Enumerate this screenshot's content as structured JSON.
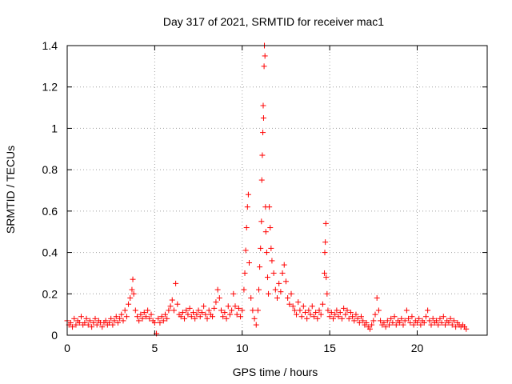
{
  "chart_data": {
    "type": "scatter",
    "title": "Day 317 of 2021, SRMTID for receiver mac1",
    "xlabel": "GPS time / hours",
    "ylabel": "SRMTID / TECUs",
    "xlim": [
      0,
      24
    ],
    "ylim": [
      0,
      1.4
    ],
    "x_ticks": [
      0,
      5,
      10,
      15,
      20
    ],
    "x_tick_labels": [
      "0",
      "5",
      "10",
      "15",
      "20"
    ],
    "y_ticks": [
      0,
      0.2,
      0.4,
      0.6,
      0.8,
      1.0,
      1.2,
      1.4
    ],
    "y_tick_labels": [
      "0",
      "0.2",
      "0.4",
      "0.6",
      "0.8",
      "1",
      "1.2",
      "1.4"
    ],
    "grid": true,
    "marker": "+",
    "series": [
      {
        "name": "mac1",
        "color": "#ff0000",
        "points": [
          [
            0.0,
            0.07
          ],
          [
            0.1,
            0.05
          ],
          [
            0.2,
            0.06
          ],
          [
            0.3,
            0.04
          ],
          [
            0.4,
            0.08
          ],
          [
            0.5,
            0.05
          ],
          [
            0.6,
            0.07
          ],
          [
            0.7,
            0.06
          ],
          [
            0.8,
            0.09
          ],
          [
            0.9,
            0.05
          ],
          [
            1.0,
            0.06
          ],
          [
            1.1,
            0.08
          ],
          [
            1.2,
            0.05
          ],
          [
            1.3,
            0.07
          ],
          [
            1.4,
            0.04
          ],
          [
            1.5,
            0.06
          ],
          [
            1.6,
            0.08
          ],
          [
            1.7,
            0.05
          ],
          [
            1.8,
            0.07
          ],
          [
            1.9,
            0.06
          ],
          [
            2.0,
            0.04
          ],
          [
            2.1,
            0.06
          ],
          [
            2.2,
            0.07
          ],
          [
            2.3,
            0.05
          ],
          [
            2.4,
            0.06
          ],
          [
            2.5,
            0.08
          ],
          [
            2.6,
            0.05
          ],
          [
            2.7,
            0.07
          ],
          [
            2.8,
            0.09
          ],
          [
            2.9,
            0.06
          ],
          [
            3.0,
            0.08
          ],
          [
            3.1,
            0.1
          ],
          [
            3.2,
            0.07
          ],
          [
            3.3,
            0.12
          ],
          [
            3.4,
            0.09
          ],
          [
            3.5,
            0.15
          ],
          [
            3.6,
            0.18
          ],
          [
            3.7,
            0.22
          ],
          [
            3.75,
            0.27
          ],
          [
            3.8,
            0.2
          ],
          [
            3.9,
            0.12
          ],
          [
            4.0,
            0.09
          ],
          [
            4.1,
            0.07
          ],
          [
            4.2,
            0.1
          ],
          [
            4.3,
            0.08
          ],
          [
            4.4,
            0.11
          ],
          [
            4.5,
            0.09
          ],
          [
            4.6,
            0.12
          ],
          [
            4.7,
            0.08
          ],
          [
            4.8,
            0.1
          ],
          [
            4.9,
            0.07
          ],
          [
            5.0,
            0.06
          ],
          [
            5.1,
            0.0
          ],
          [
            5.2,
            0.08
          ],
          [
            5.3,
            0.06
          ],
          [
            5.4,
            0.09
          ],
          [
            5.5,
            0.07
          ],
          [
            5.6,
            0.1
          ],
          [
            5.7,
            0.08
          ],
          [
            5.8,
            0.12
          ],
          [
            5.9,
            0.14
          ],
          [
            6.0,
            0.17
          ],
          [
            6.1,
            0.12
          ],
          [
            6.2,
            0.25
          ],
          [
            6.3,
            0.15
          ],
          [
            6.4,
            0.1
          ],
          [
            6.5,
            0.09
          ],
          [
            6.6,
            0.11
          ],
          [
            6.7,
            0.08
          ],
          [
            6.8,
            0.12
          ],
          [
            6.9,
            0.1
          ],
          [
            7.0,
            0.13
          ],
          [
            7.1,
            0.09
          ],
          [
            7.2,
            0.11
          ],
          [
            7.3,
            0.08
          ],
          [
            7.4,
            0.1
          ],
          [
            7.5,
            0.12
          ],
          [
            7.6,
            0.09
          ],
          [
            7.7,
            0.11
          ],
          [
            7.8,
            0.14
          ],
          [
            7.9,
            0.1
          ],
          [
            8.0,
            0.08
          ],
          [
            8.1,
            0.12
          ],
          [
            8.2,
            0.1
          ],
          [
            8.3,
            0.09
          ],
          [
            8.4,
            0.13
          ],
          [
            8.5,
            0.16
          ],
          [
            8.6,
            0.22
          ],
          [
            8.7,
            0.18
          ],
          [
            8.8,
            0.12
          ],
          [
            8.9,
            0.09
          ],
          [
            9.0,
            0.11
          ],
          [
            9.1,
            0.08
          ],
          [
            9.2,
            0.14
          ],
          [
            9.3,
            0.1
          ],
          [
            9.4,
            0.12
          ],
          [
            9.5,
            0.2
          ],
          [
            9.6,
            0.14
          ],
          [
            9.7,
            0.1
          ],
          [
            9.8,
            0.13
          ],
          [
            9.9,
            0.09
          ],
          [
            10.0,
            0.12
          ],
          [
            10.1,
            0.22
          ],
          [
            10.15,
            0.3
          ],
          [
            10.2,
            0.41
          ],
          [
            10.25,
            0.52
          ],
          [
            10.3,
            0.62
          ],
          [
            10.35,
            0.68
          ],
          [
            10.4,
            0.35
          ],
          [
            10.5,
            0.18
          ],
          [
            10.6,
            0.12
          ],
          [
            10.7,
            0.08
          ],
          [
            10.8,
            0.05
          ],
          [
            10.9,
            0.12
          ],
          [
            10.95,
            0.22
          ],
          [
            11.0,
            0.33
          ],
          [
            11.05,
            0.42
          ],
          [
            11.1,
            0.55
          ],
          [
            11.12,
            0.75
          ],
          [
            11.15,
            0.87
          ],
          [
            11.18,
            0.98
          ],
          [
            11.2,
            1.11
          ],
          [
            11.22,
            1.05
          ],
          [
            11.25,
            1.3
          ],
          [
            11.27,
            1.4
          ],
          [
            11.3,
            1.35
          ],
          [
            11.33,
            0.62
          ],
          [
            11.35,
            0.5
          ],
          [
            11.4,
            0.4
          ],
          [
            11.45,
            0.28
          ],
          [
            11.5,
            0.2
          ],
          [
            11.55,
            0.62
          ],
          [
            11.6,
            0.52
          ],
          [
            11.65,
            0.42
          ],
          [
            11.7,
            0.36
          ],
          [
            11.8,
            0.3
          ],
          [
            11.9,
            0.22
          ],
          [
            12.0,
            0.18
          ],
          [
            12.1,
            0.25
          ],
          [
            12.2,
            0.21
          ],
          [
            12.3,
            0.3
          ],
          [
            12.4,
            0.34
          ],
          [
            12.5,
            0.26
          ],
          [
            12.6,
            0.18
          ],
          [
            12.7,
            0.15
          ],
          [
            12.8,
            0.2
          ],
          [
            12.9,
            0.14
          ],
          [
            13.0,
            0.12
          ],
          [
            13.1,
            0.1
          ],
          [
            13.2,
            0.16
          ],
          [
            13.3,
            0.12
          ],
          [
            13.4,
            0.09
          ],
          [
            13.5,
            0.14
          ],
          [
            13.6,
            0.11
          ],
          [
            13.7,
            0.08
          ],
          [
            13.8,
            0.12
          ],
          [
            13.9,
            0.1
          ],
          [
            14.0,
            0.14
          ],
          [
            14.1,
            0.09
          ],
          [
            14.2,
            0.11
          ],
          [
            14.3,
            0.08
          ],
          [
            14.4,
            0.12
          ],
          [
            14.5,
            0.1
          ],
          [
            14.6,
            0.15
          ],
          [
            14.7,
            0.3
          ],
          [
            14.72,
            0.4
          ],
          [
            14.75,
            0.45
          ],
          [
            14.78,
            0.54
          ],
          [
            14.8,
            0.28
          ],
          [
            14.85,
            0.2
          ],
          [
            14.9,
            0.12
          ],
          [
            15.0,
            0.09
          ],
          [
            15.1,
            0.11
          ],
          [
            15.2,
            0.08
          ],
          [
            15.3,
            0.1
          ],
          [
            15.4,
            0.12
          ],
          [
            15.5,
            0.09
          ],
          [
            15.6,
            0.11
          ],
          [
            15.7,
            0.08
          ],
          [
            15.8,
            0.13
          ],
          [
            15.9,
            0.1
          ],
          [
            16.0,
            0.12
          ],
          [
            16.1,
            0.08
          ],
          [
            16.2,
            0.11
          ],
          [
            16.3,
            0.09
          ],
          [
            16.4,
            0.07
          ],
          [
            16.5,
            0.1
          ],
          [
            16.6,
            0.08
          ],
          [
            16.7,
            0.06
          ],
          [
            16.8,
            0.09
          ],
          [
            16.9,
            0.07
          ],
          [
            17.0,
            0.05
          ],
          [
            17.1,
            0.06
          ],
          [
            17.2,
            0.04
          ],
          [
            17.3,
            0.03
          ],
          [
            17.4,
            0.05
          ],
          [
            17.5,
            0.07
          ],
          [
            17.6,
            0.1
          ],
          [
            17.7,
            0.18
          ],
          [
            17.8,
            0.12
          ],
          [
            17.9,
            0.07
          ],
          [
            18.0,
            0.05
          ],
          [
            18.1,
            0.06
          ],
          [
            18.2,
            0.04
          ],
          [
            18.3,
            0.07
          ],
          [
            18.4,
            0.05
          ],
          [
            18.5,
            0.08
          ],
          [
            18.6,
            0.06
          ],
          [
            18.7,
            0.09
          ],
          [
            18.8,
            0.05
          ],
          [
            18.9,
            0.07
          ],
          [
            19.0,
            0.06
          ],
          [
            19.1,
            0.08
          ],
          [
            19.2,
            0.05
          ],
          [
            19.3,
            0.07
          ],
          [
            19.4,
            0.12
          ],
          [
            19.5,
            0.08
          ],
          [
            19.6,
            0.06
          ],
          [
            19.7,
            0.09
          ],
          [
            19.8,
            0.05
          ],
          [
            19.9,
            0.07
          ],
          [
            20.0,
            0.06
          ],
          [
            20.1,
            0.08
          ],
          [
            20.2,
            0.05
          ],
          [
            20.3,
            0.07
          ],
          [
            20.4,
            0.06
          ],
          [
            20.5,
            0.09
          ],
          [
            20.6,
            0.12
          ],
          [
            20.7,
            0.07
          ],
          [
            20.8,
            0.05
          ],
          [
            20.9,
            0.08
          ],
          [
            21.0,
            0.06
          ],
          [
            21.1,
            0.07
          ],
          [
            21.2,
            0.05
          ],
          [
            21.3,
            0.08
          ],
          [
            21.4,
            0.06
          ],
          [
            21.5,
            0.09
          ],
          [
            21.6,
            0.05
          ],
          [
            21.7,
            0.07
          ],
          [
            21.8,
            0.06
          ],
          [
            21.9,
            0.08
          ],
          [
            22.0,
            0.05
          ],
          [
            22.1,
            0.07
          ],
          [
            22.2,
            0.04
          ],
          [
            22.3,
            0.06
          ],
          [
            22.4,
            0.05
          ],
          [
            22.5,
            0.04
          ],
          [
            22.6,
            0.05
          ],
          [
            22.7,
            0.04
          ],
          [
            22.8,
            0.03
          ]
        ]
      }
    ]
  }
}
